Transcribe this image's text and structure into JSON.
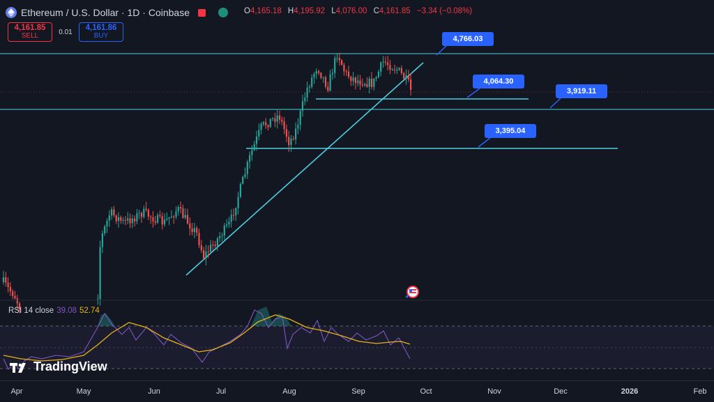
{
  "header": {
    "title": "Ethereum / U.S. Dollar · 1D · Coinbase",
    "ohlc": [
      {
        "k": "O",
        "v": "4,165.18"
      },
      {
        "k": "H",
        "v": "4,195.92"
      },
      {
        "k": "L",
        "v": "4,076.00"
      },
      {
        "k": "C",
        "v": "4,161.85"
      }
    ],
    "change": "−3.34 (−0.08%)"
  },
  "trade": {
    "sell_price": "4,161.85",
    "sell_label": "SELL",
    "spread": "0.01",
    "buy_price": "4,161.86",
    "buy_label": "BUY"
  },
  "price_labels": [
    "4,766.03",
    "4,064.30",
    "3,919.11",
    "3,395.04"
  ],
  "rsi": {
    "label": "RSI 14 close",
    "value": "39.08",
    "ma_value": "52.74"
  },
  "brand": {
    "name": "TradingView"
  },
  "x_axis": [
    "Apr",
    "May",
    "Jun",
    "Jul",
    "Aug",
    "Sep",
    "Oct",
    "Nov",
    "Dec",
    "2026",
    "Feb"
  ],
  "colors": {
    "up": "#26a69a",
    "down": "#ef5350",
    "line": "#4dd0e1",
    "label": "#2962ff",
    "rsi": "#7e57c2",
    "rsi_ma": "#e8b31a"
  },
  "chart_data": {
    "type": "candlestick",
    "symbol": "Ethereum / U.S. Dollar",
    "interval": "1D",
    "horizontal_levels": [
      4766.03,
      4064.3,
      3919.11,
      3395.04
    ]
  }
}
